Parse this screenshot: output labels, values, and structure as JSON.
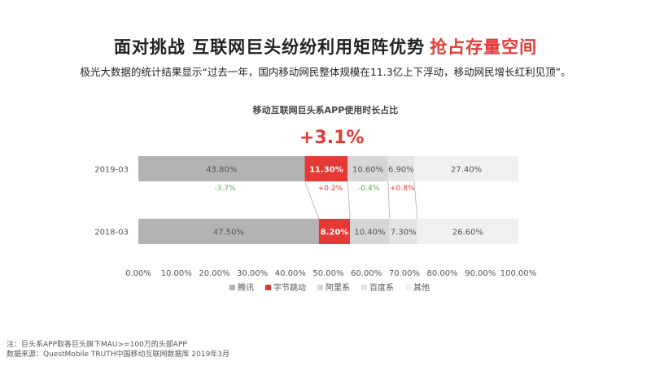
{
  "headline": {
    "main": "面对挑战  互联网巨头纷纷利用矩阵优势",
    "accent": "抢占存量空间"
  },
  "subline": "极光大数据的统计结果显示“过去一年，国内移动网民整体规模在11.3亿上下浮动，移动网民增长红利见顶”。",
  "highlight": "+3.1%",
  "colors": {
    "tencent": "#b3b3b3",
    "bytedance": "#e53935",
    "alibaba": "#d6d6d6",
    "baidu": "#e4e4e4",
    "other": "#f0f0f0",
    "positive": "#e53935",
    "negative": "#4caf50"
  },
  "chart_data": {
    "type": "bar",
    "orientation": "horizontal",
    "stacked": "percent",
    "title": "移动互联网巨头系APP使用时长占比",
    "categories": [
      "2019-03",
      "2018-03"
    ],
    "series": [
      {
        "name": "腾讯",
        "values": [
          43.8,
          47.5
        ],
        "labels": [
          "43.80%",
          "47.50%"
        ]
      },
      {
        "name": "字节跳动",
        "values": [
          11.3,
          8.2
        ],
        "labels": [
          "11.30%",
          "8.20%"
        ]
      },
      {
        "name": "阿里系",
        "values": [
          10.6,
          10.4
        ],
        "labels": [
          "10.60%",
          "10.40%"
        ]
      },
      {
        "name": "百度系",
        "values": [
          6.9,
          7.3
        ],
        "labels": [
          "6.90%",
          "7.30%"
        ]
      },
      {
        "name": "其他",
        "values": [
          27.4,
          26.6
        ],
        "labels": [
          "27.40%",
          "26.60%"
        ]
      }
    ],
    "changes": [
      "-3.7%",
      "+0.2%",
      "-0.4%",
      "+0.8%"
    ],
    "xlim": [
      0,
      100
    ],
    "xticks": [
      "0.00%",
      "10.00%",
      "20.00%",
      "30.00%",
      "40.00%",
      "50.00%",
      "60.00%",
      "70.00%",
      "80.00%",
      "90.00%",
      "100.00%"
    ],
    "grid": false,
    "legend": "bottom"
  },
  "notes": [
    "注：巨头系APP取各巨头旗下MAU>=100万的头部APP",
    "数据来源：QuestMobile TRUTH中国移动互联网数据库 2019年3月"
  ]
}
